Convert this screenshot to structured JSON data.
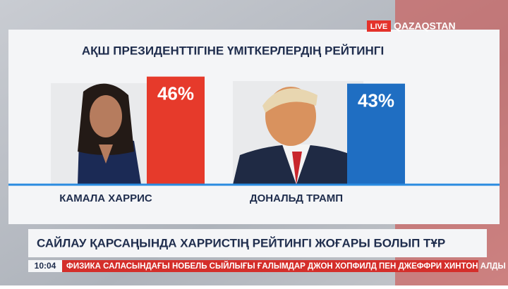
{
  "channel": {
    "live": "LIVE",
    "name": "QAZAQSTAN"
  },
  "chart_data": {
    "type": "bar",
    "title": "АҚШ ПРЕЗИДЕНТТІГІНЕ ҮМІТКЕРЛЕРДІҢ РЕЙТИНГІ",
    "categories": [
      "КАМАЛА ХАРРИС",
      "ДОНАЛЬД ТРАМП"
    ],
    "values": [
      46,
      43
    ],
    "value_labels": [
      "46%",
      "43%"
    ],
    "colors": [
      "#e63a2b",
      "#1f6ec2"
    ],
    "ylim": [
      0,
      60
    ]
  },
  "headline": "САЙЛАУ ҚАРСАҢЫНДА ХАРРИСТІҢ РЕЙТИНГІ ЖОҒАРЫ БОЛЫП ТҰР",
  "ticker": {
    "time": "10:04",
    "text": "ФИЗИКА САЛАСЫНДАҒЫ НОБЕЛЬ СЫЙЛЫҒЫ ҒАЛЫМДАР ДЖОН ХОПФИЛД ПЕН ДЖЕФФРИ ХИНТОН АЛДЫ"
  }
}
